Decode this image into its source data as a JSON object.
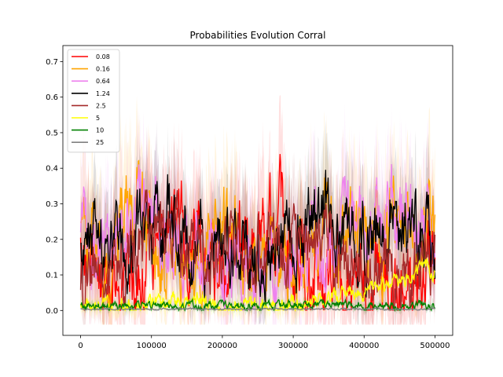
{
  "chart_data": {
    "type": "line",
    "title": "Probabilities Evolution Corral",
    "xlabel": "",
    "ylabel": "",
    "xlim": [
      -25000,
      525000
    ],
    "ylim": [
      -0.07,
      0.745
    ],
    "x_ticks": [
      0,
      100000,
      200000,
      300000,
      400000,
      500000
    ],
    "x_tick_labels": [
      "0",
      "100000",
      "200000",
      "300000",
      "400000",
      "500000"
    ],
    "y_ticks": [
      0.0,
      0.1,
      0.2,
      0.3,
      0.4,
      0.5,
      0.6,
      0.7
    ],
    "y_tick_labels": [
      "0.0",
      "0.1",
      "0.2",
      "0.3",
      "0.4",
      "0.5",
      "0.6",
      "0.7"
    ],
    "grid": false,
    "legend": "top-left",
    "x_range": [
      0,
      500000
    ],
    "series": [
      {
        "name": "0.08",
        "color": "#ff0000",
        "mean": 0.14,
        "amp": 0.1,
        "max": 0.44,
        "band": 0.12,
        "seed": 11,
        "profile": [
          [
            0,
            0.14
          ],
          [
            50000,
            0.1
          ],
          [
            100000,
            0.15
          ],
          [
            150000,
            0.22
          ],
          [
            200000,
            0.14
          ],
          [
            250000,
            0.16
          ],
          [
            280000,
            0.32
          ],
          [
            300000,
            0.12
          ],
          [
            350000,
            0.08
          ],
          [
            400000,
            0.06
          ],
          [
            450000,
            0.06
          ],
          [
            500000,
            0.12
          ]
        ]
      },
      {
        "name": "0.16",
        "color": "#ffa500",
        "mean": 0.2,
        "amp": 0.1,
        "max": 0.54,
        "band": 0.13,
        "seed": 23,
        "profile": [
          [
            0,
            0.18
          ],
          [
            40000,
            0.15
          ],
          [
            70000,
            0.35
          ],
          [
            85000,
            0.3
          ],
          [
            100000,
            0.15
          ],
          [
            150000,
            0.14
          ],
          [
            200000,
            0.22
          ],
          [
            250000,
            0.13
          ],
          [
            300000,
            0.18
          ],
          [
            350000,
            0.22
          ],
          [
            400000,
            0.2
          ],
          [
            450000,
            0.2
          ],
          [
            500000,
            0.18
          ]
        ]
      },
      {
        "name": "0.64",
        "color": "#ee82ee",
        "mean": 0.2,
        "amp": 0.09,
        "max": 0.46,
        "band": 0.12,
        "seed": 37,
        "profile": [
          [
            0,
            0.2
          ],
          [
            30000,
            0.22
          ],
          [
            60000,
            0.28
          ],
          [
            100000,
            0.25
          ],
          [
            150000,
            0.18
          ],
          [
            200000,
            0.15
          ],
          [
            250000,
            0.1
          ],
          [
            300000,
            0.12
          ],
          [
            350000,
            0.16
          ],
          [
            400000,
            0.25
          ],
          [
            450000,
            0.25
          ],
          [
            500000,
            0.26
          ]
        ]
      },
      {
        "name": "1.24",
        "color": "#000000",
        "mean": 0.2,
        "amp": 0.09,
        "max": 0.42,
        "band": 0.1,
        "seed": 41,
        "profile": [
          [
            0,
            0.12
          ],
          [
            20000,
            0.2
          ],
          [
            50000,
            0.14
          ],
          [
            100000,
            0.22
          ],
          [
            130000,
            0.24
          ],
          [
            160000,
            0.14
          ],
          [
            200000,
            0.22
          ],
          [
            250000,
            0.14
          ],
          [
            300000,
            0.2
          ],
          [
            340000,
            0.3
          ],
          [
            380000,
            0.2
          ],
          [
            420000,
            0.25
          ],
          [
            460000,
            0.22
          ],
          [
            500000,
            0.15
          ]
        ]
      },
      {
        "name": "2.5",
        "color": "#a52a2a",
        "mean": 0.16,
        "amp": 0.08,
        "max": 0.34,
        "band": 0.1,
        "seed": 53,
        "profile": [
          [
            0,
            0.12
          ],
          [
            50000,
            0.12
          ],
          [
            100000,
            0.2
          ],
          [
            150000,
            0.2
          ],
          [
            200000,
            0.16
          ],
          [
            250000,
            0.18
          ],
          [
            300000,
            0.2
          ],
          [
            350000,
            0.16
          ],
          [
            400000,
            0.12
          ],
          [
            450000,
            0.1
          ],
          [
            500000,
            0.12
          ]
        ]
      },
      {
        "name": "5",
        "color": "#ffff00",
        "mean": 0.02,
        "amp": 0.02,
        "max": 0.25,
        "band": 0.02,
        "seed": 67,
        "profile": [
          [
            0,
            0.012
          ],
          [
            100000,
            0.012
          ],
          [
            150000,
            0.03
          ],
          [
            200000,
            0.01
          ],
          [
            300000,
            0.01
          ],
          [
            350000,
            0.03
          ],
          [
            400000,
            0.06
          ],
          [
            450000,
            0.08
          ],
          [
            480000,
            0.12
          ],
          [
            500000,
            0.12
          ]
        ]
      },
      {
        "name": "10",
        "color": "#008000",
        "mean": 0.01,
        "amp": 0.01,
        "max": 0.1,
        "band": 0.01,
        "seed": 79,
        "profile": [
          [
            0,
            0.012
          ],
          [
            150000,
            0.01
          ],
          [
            170000,
            0.015
          ],
          [
            250000,
            0.008
          ],
          [
            320000,
            0.02
          ],
          [
            400000,
            0.015
          ],
          [
            500000,
            0.01
          ]
        ]
      },
      {
        "name": "25",
        "color": "#808080",
        "mean": 0.004,
        "amp": 0.002,
        "max": 0.02,
        "band": 0.003,
        "seed": 97,
        "profile": [
          [
            0,
            0.004
          ],
          [
            500000,
            0.004
          ]
        ]
      }
    ]
  }
}
